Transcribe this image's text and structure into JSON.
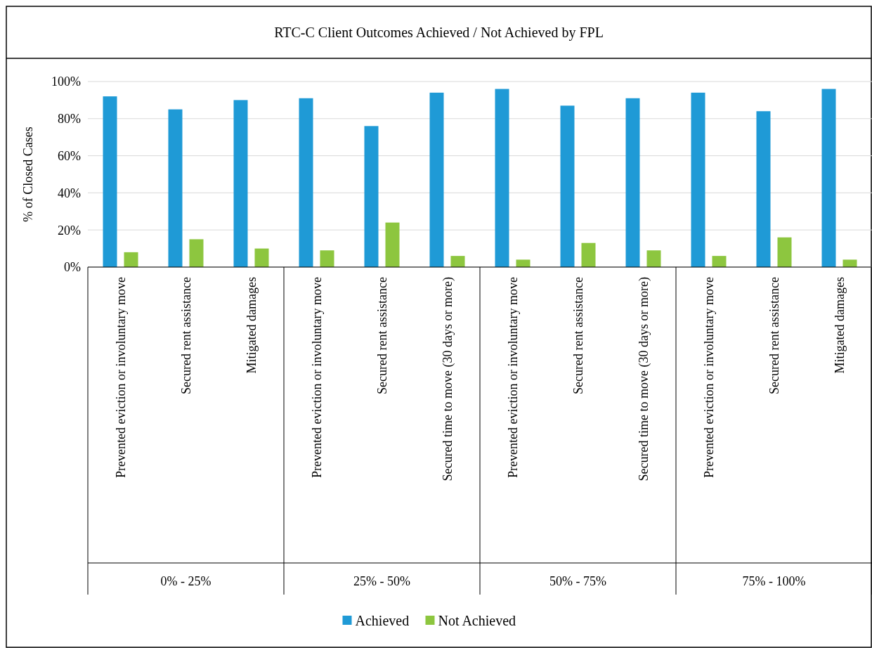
{
  "chart_data": {
    "type": "bar",
    "title": "RTC-C Client Outcomes Achieved / Not Achieved by FPL",
    "ylabel": "% of Closed Cases",
    "categories": [
      "Prevented eviction or involuntary move",
      "Secured rent assistance",
      "Mitigated damages",
      "Prevented eviction or involuntary move",
      "Secured rent assistance",
      "Secured time to move (30 days or more)",
      "Prevented eviction or involuntary move",
      "Secured rent assistance",
      "Secured time to move (30 days or more)",
      "Prevented eviction or involuntary move",
      "Secured rent assistance",
      "Mitigated damages"
    ],
    "annotations": [
      "0% - 25%",
      "25% - 50%",
      "50% - 75%",
      "75% - 100%"
    ],
    "series": [
      {
        "name": "Achieved",
        "color": "#1f9ad6",
        "values": [
          92,
          85,
          90,
          91,
          76,
          94,
          96,
          87,
          91,
          94,
          84,
          96
        ]
      },
      {
        "name": "Not Achieved",
        "color": "#8dc63f",
        "values": [
          8,
          15,
          10,
          9,
          24,
          6,
          4,
          13,
          9,
          6,
          16,
          4
        ]
      }
    ],
    "ylim": [
      0,
      100
    ],
    "yticks": [
      {
        "value": 0,
        "label": "0%"
      },
      {
        "value": 20,
        "label": "20%"
      },
      {
        "value": 40,
        "label": "40%"
      },
      {
        "value": 60,
        "label": "60%"
      },
      {
        "value": 80,
        "label": "80%"
      },
      {
        "value": 100,
        "label": "100%"
      }
    ],
    "grid": "y",
    "legend": "bottom"
  }
}
